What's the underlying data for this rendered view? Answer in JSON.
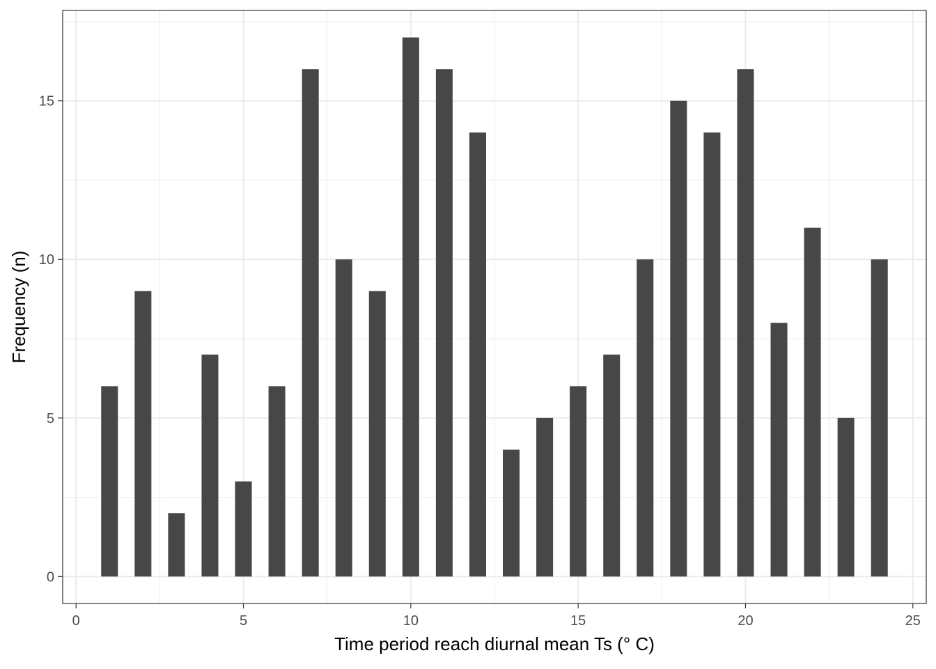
{
  "chart_data": {
    "type": "bar",
    "title": "",
    "xlabel": "Time period reach diurnal mean Ts (° C)",
    "ylabel": "Frequency (n)",
    "x": [
      1,
      2,
      3,
      4,
      5,
      6,
      7,
      8,
      9,
      10,
      11,
      12,
      13,
      14,
      15,
      16,
      17,
      18,
      19,
      20,
      21,
      22,
      23,
      24
    ],
    "values": [
      6,
      9,
      2,
      7,
      3,
      6,
      16,
      10,
      9,
      17,
      16,
      14,
      4,
      5,
      6,
      7,
      10,
      15,
      14,
      16,
      8,
      11,
      5,
      10
    ],
    "xlim": [
      -0.4,
      25.4
    ],
    "ylim": [
      -0.85,
      17.85
    ],
    "xticks": [
      0,
      5,
      10,
      15,
      20,
      25
    ],
    "yticks": [
      0,
      5,
      10,
      15
    ],
    "grid": true,
    "bar_color": "#474747",
    "grid_color": "#ebebeb",
    "panel_border_color": "#333333"
  }
}
